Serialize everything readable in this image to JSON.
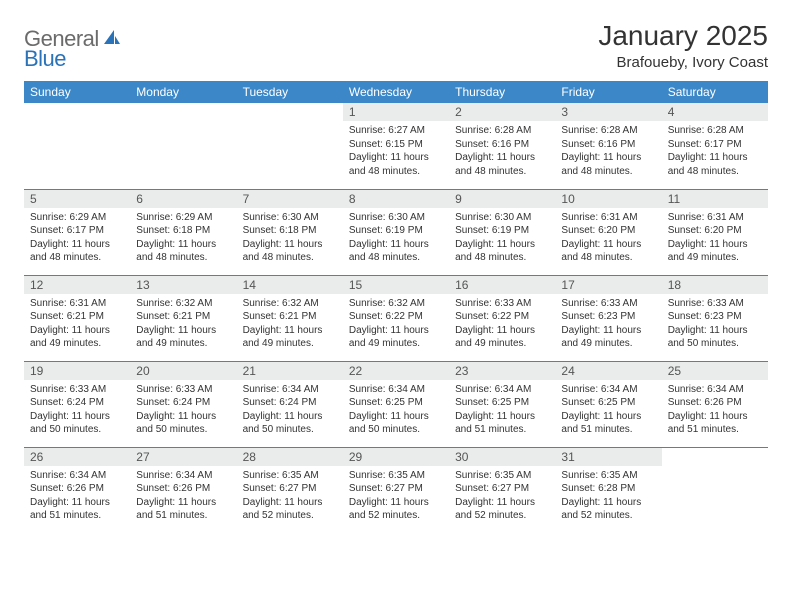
{
  "logo": {
    "text1": "General",
    "text2": "Blue"
  },
  "title": "January 2025",
  "location": "Brafoueby, Ivory Coast",
  "colors": {
    "header_bg": "#3b87c8",
    "header_text": "#ffffff",
    "daynum_bg": "#e9eceb",
    "border": "#5a7fa0",
    "logo_gray": "#6b6b6b",
    "logo_blue": "#2a73b8"
  },
  "day_headers": [
    "Sunday",
    "Monday",
    "Tuesday",
    "Wednesday",
    "Thursday",
    "Friday",
    "Saturday"
  ],
  "weeks": [
    [
      null,
      null,
      null,
      {
        "n": "1",
        "sr": "6:27 AM",
        "ss": "6:15 PM",
        "dl": "11 hours and 48 minutes."
      },
      {
        "n": "2",
        "sr": "6:28 AM",
        "ss": "6:16 PM",
        "dl": "11 hours and 48 minutes."
      },
      {
        "n": "3",
        "sr": "6:28 AM",
        "ss": "6:16 PM",
        "dl": "11 hours and 48 minutes."
      },
      {
        "n": "4",
        "sr": "6:28 AM",
        "ss": "6:17 PM",
        "dl": "11 hours and 48 minutes."
      }
    ],
    [
      {
        "n": "5",
        "sr": "6:29 AM",
        "ss": "6:17 PM",
        "dl": "11 hours and 48 minutes."
      },
      {
        "n": "6",
        "sr": "6:29 AM",
        "ss": "6:18 PM",
        "dl": "11 hours and 48 minutes."
      },
      {
        "n": "7",
        "sr": "6:30 AM",
        "ss": "6:18 PM",
        "dl": "11 hours and 48 minutes."
      },
      {
        "n": "8",
        "sr": "6:30 AM",
        "ss": "6:19 PM",
        "dl": "11 hours and 48 minutes."
      },
      {
        "n": "9",
        "sr": "6:30 AM",
        "ss": "6:19 PM",
        "dl": "11 hours and 48 minutes."
      },
      {
        "n": "10",
        "sr": "6:31 AM",
        "ss": "6:20 PM",
        "dl": "11 hours and 48 minutes."
      },
      {
        "n": "11",
        "sr": "6:31 AM",
        "ss": "6:20 PM",
        "dl": "11 hours and 49 minutes."
      }
    ],
    [
      {
        "n": "12",
        "sr": "6:31 AM",
        "ss": "6:21 PM",
        "dl": "11 hours and 49 minutes."
      },
      {
        "n": "13",
        "sr": "6:32 AM",
        "ss": "6:21 PM",
        "dl": "11 hours and 49 minutes."
      },
      {
        "n": "14",
        "sr": "6:32 AM",
        "ss": "6:21 PM",
        "dl": "11 hours and 49 minutes."
      },
      {
        "n": "15",
        "sr": "6:32 AM",
        "ss": "6:22 PM",
        "dl": "11 hours and 49 minutes."
      },
      {
        "n": "16",
        "sr": "6:33 AM",
        "ss": "6:22 PM",
        "dl": "11 hours and 49 minutes."
      },
      {
        "n": "17",
        "sr": "6:33 AM",
        "ss": "6:23 PM",
        "dl": "11 hours and 49 minutes."
      },
      {
        "n": "18",
        "sr": "6:33 AM",
        "ss": "6:23 PM",
        "dl": "11 hours and 50 minutes."
      }
    ],
    [
      {
        "n": "19",
        "sr": "6:33 AM",
        "ss": "6:24 PM",
        "dl": "11 hours and 50 minutes."
      },
      {
        "n": "20",
        "sr": "6:33 AM",
        "ss": "6:24 PM",
        "dl": "11 hours and 50 minutes."
      },
      {
        "n": "21",
        "sr": "6:34 AM",
        "ss": "6:24 PM",
        "dl": "11 hours and 50 minutes."
      },
      {
        "n": "22",
        "sr": "6:34 AM",
        "ss": "6:25 PM",
        "dl": "11 hours and 50 minutes."
      },
      {
        "n": "23",
        "sr": "6:34 AM",
        "ss": "6:25 PM",
        "dl": "11 hours and 51 minutes."
      },
      {
        "n": "24",
        "sr": "6:34 AM",
        "ss": "6:25 PM",
        "dl": "11 hours and 51 minutes."
      },
      {
        "n": "25",
        "sr": "6:34 AM",
        "ss": "6:26 PM",
        "dl": "11 hours and 51 minutes."
      }
    ],
    [
      {
        "n": "26",
        "sr": "6:34 AM",
        "ss": "6:26 PM",
        "dl": "11 hours and 51 minutes."
      },
      {
        "n": "27",
        "sr": "6:34 AM",
        "ss": "6:26 PM",
        "dl": "11 hours and 51 minutes."
      },
      {
        "n": "28",
        "sr": "6:35 AM",
        "ss": "6:27 PM",
        "dl": "11 hours and 52 minutes."
      },
      {
        "n": "29",
        "sr": "6:35 AM",
        "ss": "6:27 PM",
        "dl": "11 hours and 52 minutes."
      },
      {
        "n": "30",
        "sr": "6:35 AM",
        "ss": "6:27 PM",
        "dl": "11 hours and 52 minutes."
      },
      {
        "n": "31",
        "sr": "6:35 AM",
        "ss": "6:28 PM",
        "dl": "11 hours and 52 minutes."
      },
      null
    ]
  ],
  "labels": {
    "sunrise": "Sunrise:",
    "sunset": "Sunset:",
    "daylight": "Daylight:"
  }
}
